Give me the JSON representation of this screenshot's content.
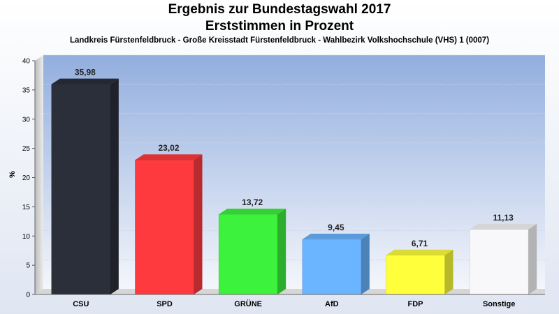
{
  "chart_data": {
    "type": "bar",
    "title": "Ergebnis zur Bundestagswahl 2017",
    "subtitle_line1": "Erststimmen in Prozent",
    "subtitle_line2": "Landkreis Fürstenfeldbruck - Große Kreisstadt Fürstenfeldbruck - Wahlbezirk Volkshochschule (VHS) 1 (0007)",
    "ylabel": "%",
    "ylim": [
      0,
      40
    ],
    "yticks": [
      "0",
      "5",
      "10",
      "15",
      "20",
      "25",
      "30",
      "35",
      "40"
    ],
    "grid": true,
    "categories": [
      "CSU",
      "SPD",
      "GRÜNE",
      "AfD",
      "FDP",
      "Sonstige"
    ],
    "values": [
      35.98,
      23.02,
      13.72,
      9.45,
      6.71,
      11.13
    ],
    "value_labels": [
      "35,98",
      "23,02",
      "13,72",
      "9,45",
      "6,71",
      "11,13"
    ],
    "colors": [
      "#2b2f3a",
      "#ff3a3f",
      "#3cf23c",
      "#6bb4ff",
      "#ffff3c",
      "#f8f8fa"
    ]
  }
}
